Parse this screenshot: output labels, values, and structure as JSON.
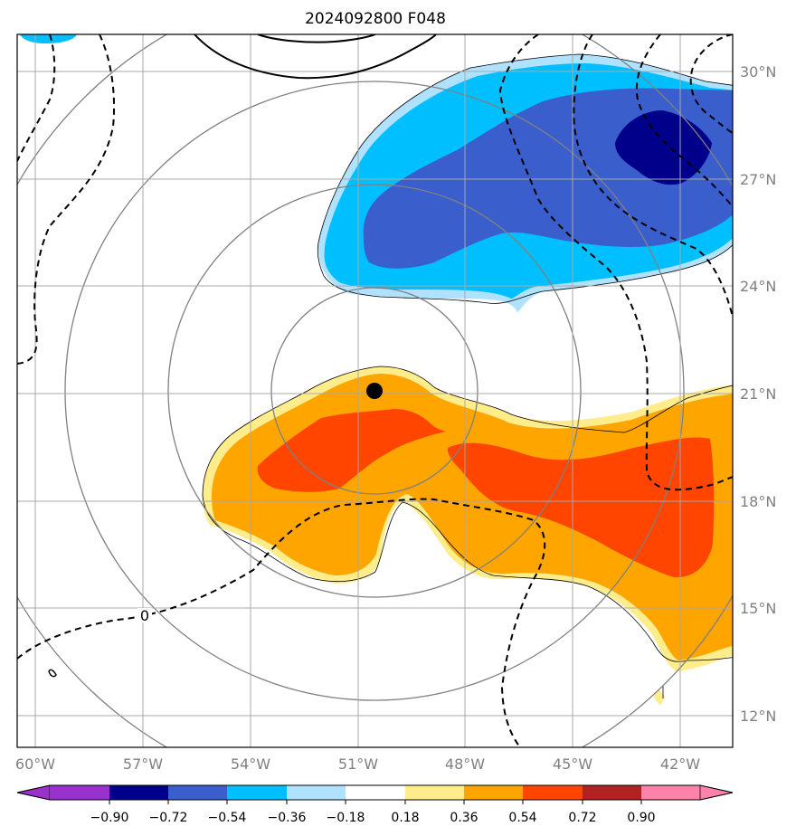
{
  "title": "2024092800 F048",
  "lon_labels": [
    "60°W",
    "57°W",
    "54°W",
    "51°W",
    "48°W",
    "45°W",
    "42°W"
  ],
  "lat_labels": [
    "30°N",
    "27°N",
    "24°N",
    "21°N",
    "18°N",
    "15°N",
    "12°N"
  ],
  "contour_label": "0",
  "colorbar": {
    "ticks": [
      "−0.90",
      "−0.72",
      "−0.54",
      "−0.36",
      "−0.18",
      "0.18",
      "0.36",
      "0.54",
      "0.72",
      "0.90"
    ],
    "colors": [
      "#9932cc",
      "#00008b",
      "#3a5fcd",
      "#00bfff",
      "#b0e2ff",
      "#ffffff",
      "#ffec8b",
      "#ffa500",
      "#ff4500",
      "#b22222",
      "#ff82ab"
    ]
  },
  "center_marker": {
    "label": "storm-center"
  }
}
